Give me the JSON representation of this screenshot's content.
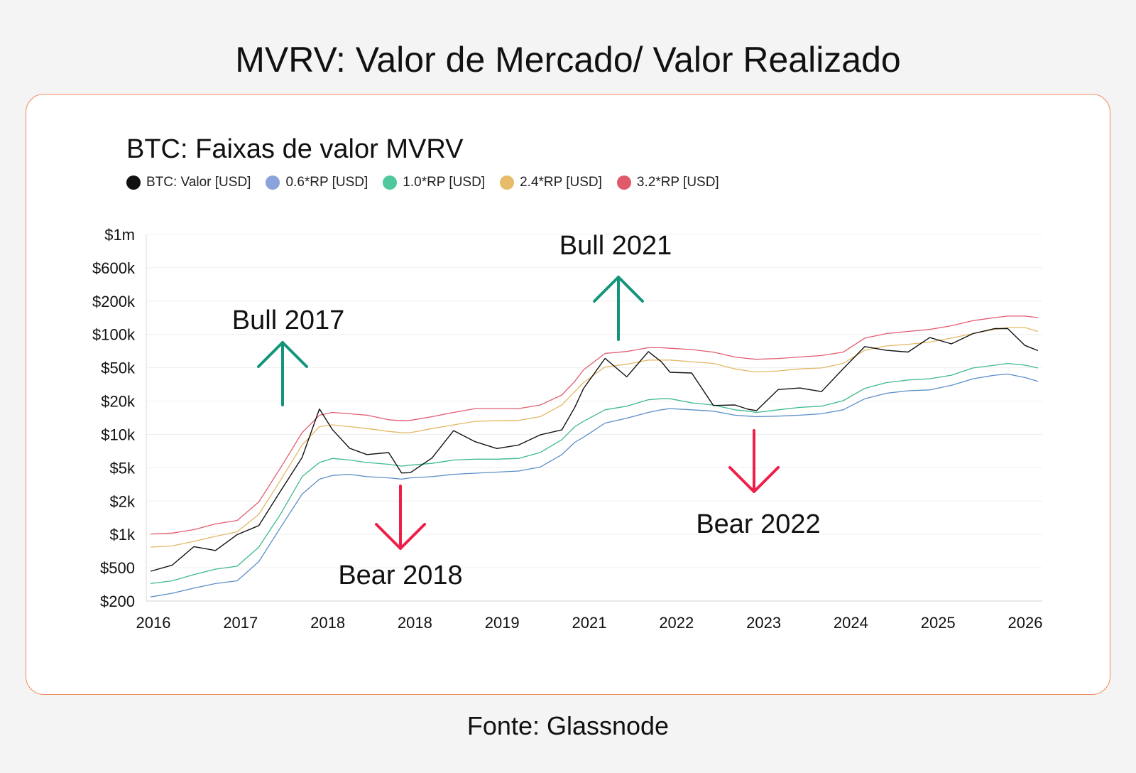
{
  "page": {
    "title": "MVRV: Valor de Mercado/ Valor Realizado",
    "source": "Fonte: Glassnode"
  },
  "colors": {
    "card_border": "#f08a5d",
    "btc": "#111111",
    "rp06": "#5b8fc7",
    "rp10": "#3db98f",
    "rp24": "#e3b865",
    "rp32": "#e25d70",
    "bull": "#14957a",
    "bear": "#ee1f48"
  },
  "chart_data": {
    "type": "line",
    "title": "BTC: Faixas de valor MVRV",
    "yscale": "log",
    "y_ticks": [
      {
        "value": 1000000,
        "label": "$1m"
      },
      {
        "value": 600000,
        "label": "$600k"
      },
      {
        "value": 200000,
        "label": "$200k"
      },
      {
        "value": 100000,
        "label": "$100k"
      },
      {
        "value": 50000,
        "label": "$50k"
      },
      {
        "value": 20000,
        "label": "$20k"
      },
      {
        "value": 10000,
        "label": "$10k"
      },
      {
        "value": 5000,
        "label": "$5k"
      },
      {
        "value": 2000,
        "label": "$2k"
      },
      {
        "value": 1000,
        "label": "$1k"
      },
      {
        "value": 500,
        "label": "$500"
      },
      {
        "value": 200,
        "label": "$200"
      }
    ],
    "x_tick_labels": [
      "2016",
      "2017",
      "2018",
      "2018",
      "2019",
      "2021",
      "2022",
      "2023",
      "2024",
      "2025",
      "2026"
    ],
    "x": [
      2016.0,
      2016.25,
      2016.5,
      2016.75,
      2017.0,
      2017.25,
      2017.5,
      2017.75,
      2017.95,
      2018.1,
      2018.3,
      2018.5,
      2018.75,
      2018.9,
      2019.0,
      2019.25,
      2019.5,
      2019.75,
      2020.0,
      2020.25,
      2020.5,
      2020.75,
      2020.9,
      2021.0,
      2021.25,
      2021.5,
      2021.75,
      2021.9,
      2022.0,
      2022.25,
      2022.5,
      2022.75,
      2022.9,
      2023.0,
      2023.25,
      2023.5,
      2023.75,
      2024.0,
      2024.25,
      2024.5,
      2024.75,
      2025.0,
      2025.25,
      2025.5,
      2025.75,
      2025.9,
      2026.1,
      2026.25
    ],
    "series": [
      {
        "name": "BTC: Valor [USD]",
        "key": "btc",
        "values": [
          400,
          430,
          650,
          620,
          950,
          1200,
          2600,
          5500,
          17000,
          11000,
          7500,
          6500,
          6400,
          3700,
          3600,
          5200,
          10500,
          8500,
          7200,
          7500,
          9300,
          10700,
          19000,
          30000,
          58000,
          35000,
          60000,
          48000,
          40000,
          42000,
          20000,
          19500,
          17000,
          16500,
          28000,
          30000,
          27000,
          43000,
          68000,
          62000,
          63000,
          95000,
          85000,
          105000,
          112000,
          110000,
          76000,
          70000
        ]
      },
      {
        "name": "0.6*RP [USD]",
        "key": "rp06",
        "values": [
          220,
          240,
          270,
          300,
          320,
          500,
          1100,
          2400,
          3400,
          3700,
          3800,
          3600,
          3500,
          3400,
          3500,
          3600,
          3800,
          3900,
          4000,
          4100,
          4500,
          6000,
          8000,
          9000,
          12500,
          14000,
          16000,
          17000,
          17500,
          17000,
          16500,
          15000,
          14700,
          14500,
          14700,
          15000,
          15500,
          17000,
          22000,
          25000,
          26500,
          27000,
          30000,
          35000,
          38000,
          39000,
          36000,
          33000
        ]
      },
      {
        "name": "1.0*RP [USD]",
        "key": "rp10",
        "values": [
          300,
          320,
          370,
          420,
          450,
          700,
          1500,
          3600,
          5000,
          5500,
          5300,
          5000,
          4800,
          4600,
          4700,
          4900,
          5300,
          5400,
          5400,
          5500,
          6300,
          8500,
          11500,
          13000,
          17000,
          18500,
          21500,
          22000,
          22000,
          20000,
          19000,
          17000,
          16500,
          16000,
          17000,
          18000,
          18500,
          21000,
          28000,
          32000,
          34000,
          35000,
          38000,
          45000,
          48000,
          50000,
          48000,
          45000
        ]
      },
      {
        "name": "2.4*RP [USD]",
        "key": "rp24",
        "values": [
          700,
          720,
          800,
          900,
          1000,
          1500,
          3300,
          7500,
          11500,
          12000,
          11500,
          11000,
          10300,
          10000,
          10000,
          11000,
          12000,
          13000,
          13200,
          13300,
          14500,
          19000,
          26000,
          32000,
          46000,
          49000,
          54000,
          54000,
          54000,
          52000,
          50000,
          44000,
          42000,
          41000,
          42000,
          44000,
          45000,
          50000,
          68000,
          75000,
          78000,
          82000,
          90000,
          100000,
          110000,
          115000,
          115000,
          105000
        ]
      },
      {
        "name": "3.2*RP [USD]",
        "key": "rp32",
        "values": [
          950,
          970,
          1050,
          1200,
          1300,
          2000,
          4400,
          10000,
          15000,
          16000,
          15500,
          15000,
          13500,
          13200,
          13300,
          14500,
          16000,
          17500,
          17500,
          17500,
          19000,
          24000,
          33000,
          43000,
          63000,
          66000,
          72000,
          72000,
          71000,
          69000,
          65000,
          58000,
          56000,
          55000,
          56000,
          58000,
          60000,
          65000,
          90000,
          100000,
          105000,
          110000,
          120000,
          135000,
          145000,
          150000,
          150000,
          145000
        ]
      }
    ],
    "annotations": [
      {
        "key": "bull2017",
        "text": "Bull 2017",
        "direction": "up",
        "x": 2017.4
      },
      {
        "key": "bear2018",
        "text": "Bear 2018",
        "direction": "down",
        "x": 2018.75
      },
      {
        "key": "bull2021",
        "text": "Bull 2021",
        "direction": "up",
        "x": 2021.25
      },
      {
        "key": "bear2022",
        "text": "Bear 2022",
        "direction": "down",
        "x": 2022.85
      }
    ],
    "grid": true,
    "legend_position": "top-left"
  }
}
